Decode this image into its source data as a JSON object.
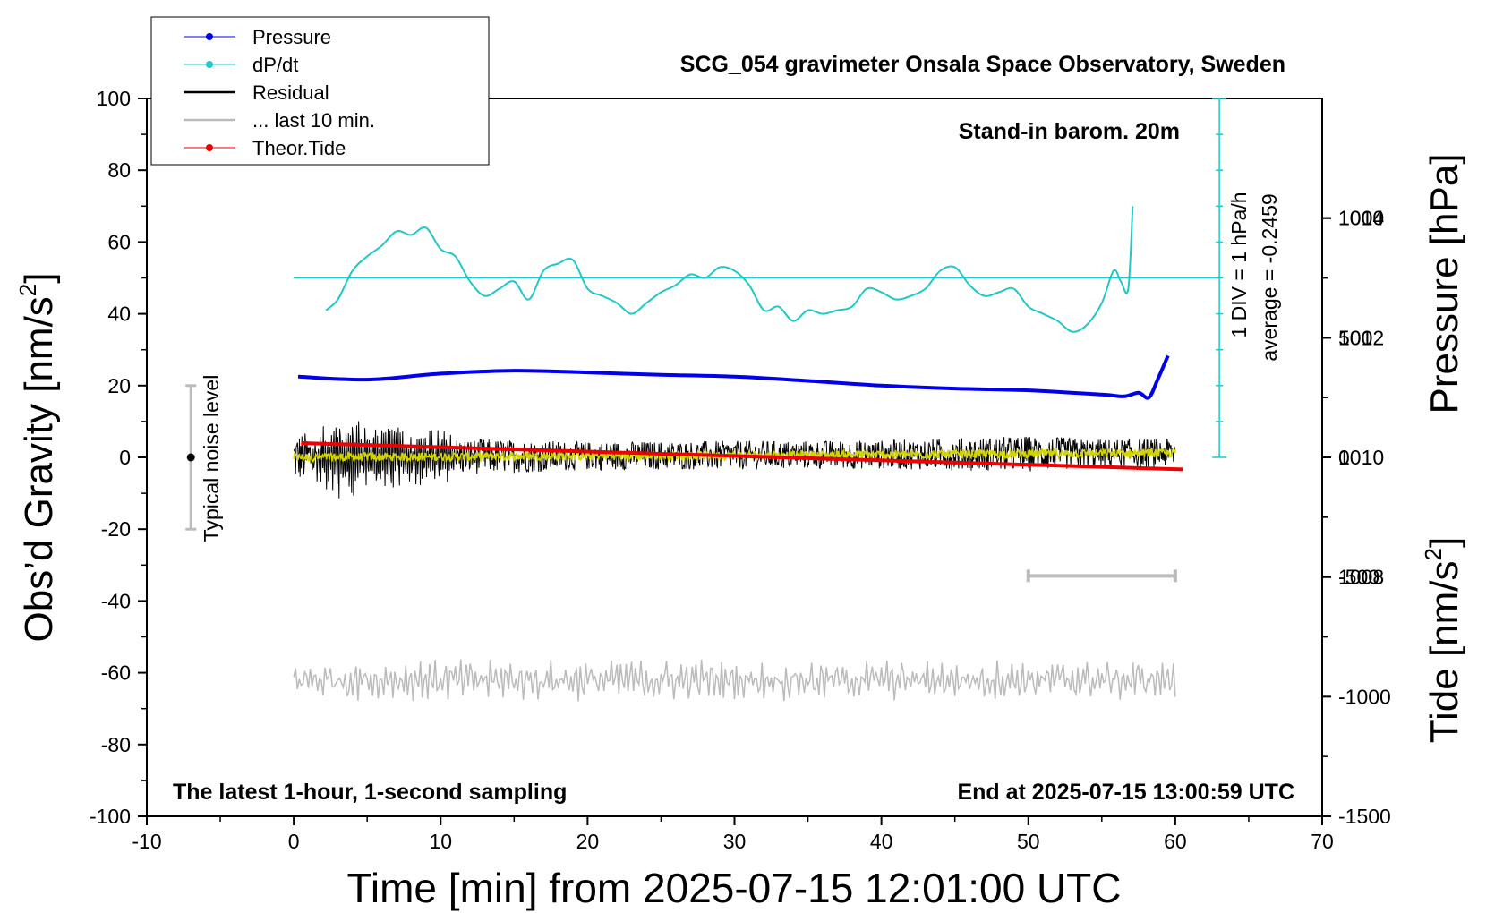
{
  "chart_data": {
    "type": "line",
    "title": "SCG_054 gravimeter Onsala Space Observatory, Sweden",
    "xlabel": "Time [min] from 2025-07-15 12:01:00 UTC",
    "ylabel_left": "Obs’d Gravity [nm/s",
    "ylabel_left_sup": "2",
    "ylabel_left_end": "]",
    "ylabel_right_top": "Pressure [hPa]",
    "ylabel_right_bottom": "Tide [nm/s",
    "ylabel_right_bottom_sup": "2",
    "ylabel_right_bottom_end": "]",
    "xlim": [
      -10,
      70
    ],
    "ylim": [
      -100,
      100
    ],
    "pressure_lim": [
      1004,
      1016
    ],
    "tide_lim": [
      -1500,
      1500
    ],
    "x_ticks": [
      "-10",
      "0",
      "10",
      "20",
      "30",
      "40",
      "50",
      "60",
      "70"
    ],
    "y_ticks": [
      "100",
      "80",
      "60",
      "40",
      "20",
      "0",
      "-20",
      "-40",
      "-60",
      "-80",
      "-100"
    ],
    "pressure_ticks": [
      "1014",
      "1012",
      "1010",
      "1008"
    ],
    "tide_ticks": [
      "1000",
      "500",
      "0",
      "-500",
      "-1000",
      "-1500"
    ],
    "annotations": {
      "stand_in": "Stand-in barom. 20m",
      "latest": "The latest 1-hour, 1-second sampling",
      "end_at": "End at 2025-07-15 13:00:59 UTC",
      "div_label": "1 DIV = 1 hPa/h",
      "average_label": "average = -0.2459",
      "noise_label": "Typical noise level"
    },
    "legend": [
      {
        "name": "Pressure",
        "color": "#0000ee",
        "marker": true
      },
      {
        "name": "dP/dt",
        "color": "#20c8c8",
        "marker": true
      },
      {
        "name": "Residual",
        "color": "#000000",
        "marker": false
      },
      {
        "name": "... last 10 min.",
        "color": "#bbbbbb",
        "marker": false
      },
      {
        "name": "Theor.Tide",
        "color": "#ee0000",
        "marker": true
      }
    ],
    "series": [
      {
        "name": "Pressure",
        "axis": "pressure_hPa",
        "color": "#0000ee",
        "x": [
          0.3,
          5,
          10,
          15,
          20,
          25,
          30,
          35,
          40,
          45,
          50,
          55,
          56.5,
          57.5,
          58.2,
          58.8,
          59.5
        ],
        "values": [
          1011.35,
          1011.3,
          1011.4,
          1011.45,
          1011.42,
          1011.38,
          1011.35,
          1011.28,
          1011.2,
          1011.15,
          1011.12,
          1011.05,
          1011.02,
          1011.08,
          1011.0,
          1011.3,
          1011.7
        ]
      },
      {
        "name": "dP/dt",
        "axis": "gravity_scaled",
        "color": "#20c8c8",
        "x": [
          2.2,
          3,
          4,
          5,
          6,
          7,
          8,
          9,
          10,
          11,
          12,
          13,
          14,
          15,
          16,
          17,
          18,
          19,
          20,
          21,
          22,
          23,
          24,
          25,
          26,
          27,
          28,
          29,
          30,
          31,
          32,
          33,
          34,
          35,
          36,
          37,
          38,
          39,
          40,
          41,
          42,
          43,
          44,
          45,
          46,
          47,
          48,
          49,
          50,
          51,
          52,
          53,
          54,
          55,
          55.8,
          56.3,
          56.8,
          57.1
        ],
        "values": [
          41,
          44,
          52,
          56,
          59,
          63,
          62,
          64,
          58,
          56,
          49,
          45,
          47,
          49,
          44,
          52,
          54,
          55,
          47,
          45,
          43,
          40,
          43,
          46,
          48,
          51,
          50,
          53,
          52,
          48,
          41,
          42,
          38,
          41,
          40,
          41,
          42,
          47,
          46,
          44,
          45,
          47,
          52,
          53,
          48,
          45,
          46,
          47,
          42,
          40,
          38,
          35,
          37,
          43,
          52,
          49,
          47,
          70
        ]
      },
      {
        "name": "Residual",
        "axis": "gravity_nm_s2",
        "color": "#000000",
        "x_range": [
          0,
          60
        ],
        "amplitude_envelope_x": [
          0,
          2,
          3,
          4,
          5,
          8,
          10,
          12,
          20,
          40,
          50,
          55,
          60
        ],
        "amplitude_envelope_values": [
          7,
          7,
          10,
          11,
          8,
          7,
          6,
          5,
          4,
          4,
          5,
          4,
          4
        ]
      },
      {
        "name": "Smoothed residual",
        "axis": "gravity_nm_s2",
        "color": "#d4d400",
        "x_range": [
          0,
          60
        ],
        "trend_start": 0,
        "trend_end": 1
      },
      {
        "name": "... last 10 min.",
        "axis": "gravity_nm_s2",
        "color": "#bbbbbb",
        "x_range": [
          0,
          60
        ],
        "values_mean": -62,
        "amplitude": 5
      },
      {
        "name": "Theor.Tide",
        "axis": "tide_nm_s2",
        "color": "#ee0000",
        "x": [
          0.5,
          60.5
        ],
        "values": [
          60,
          -50
        ]
      }
    ],
    "reference_line": {
      "name": "average",
      "axis": "gravity_nm_s2",
      "value": 50,
      "x_range": [
        0,
        63
      ]
    },
    "scale_bar": {
      "x_range": [
        50,
        60
      ],
      "y": -33
    },
    "noise_bar": {
      "x": -7,
      "y_range": [
        -20,
        20
      ],
      "center": 0
    }
  }
}
